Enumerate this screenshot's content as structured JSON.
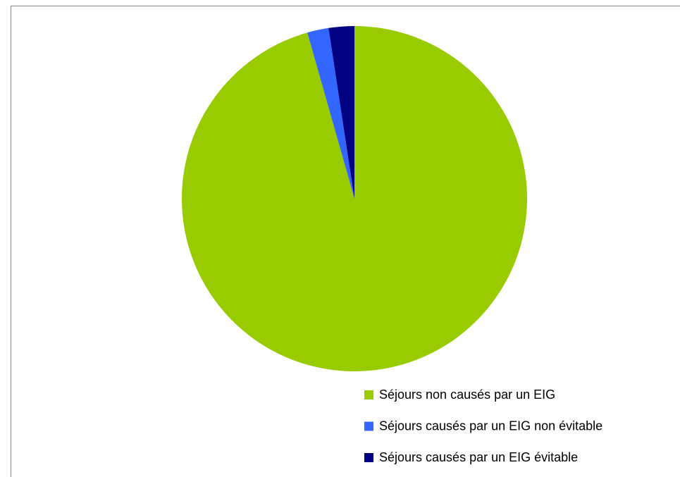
{
  "chart_data": {
    "type": "pie",
    "categories": [
      "Séjours non causés par un EIG",
      "Séjours causés par un EIG non évitable",
      "Séjours causés par un EIG évitable"
    ],
    "values": [
      95.6,
      2.0,
      2.4
    ],
    "colors": [
      "#99cc00",
      "#3366ff",
      "#000080"
    ],
    "legend": "bottom-right"
  }
}
